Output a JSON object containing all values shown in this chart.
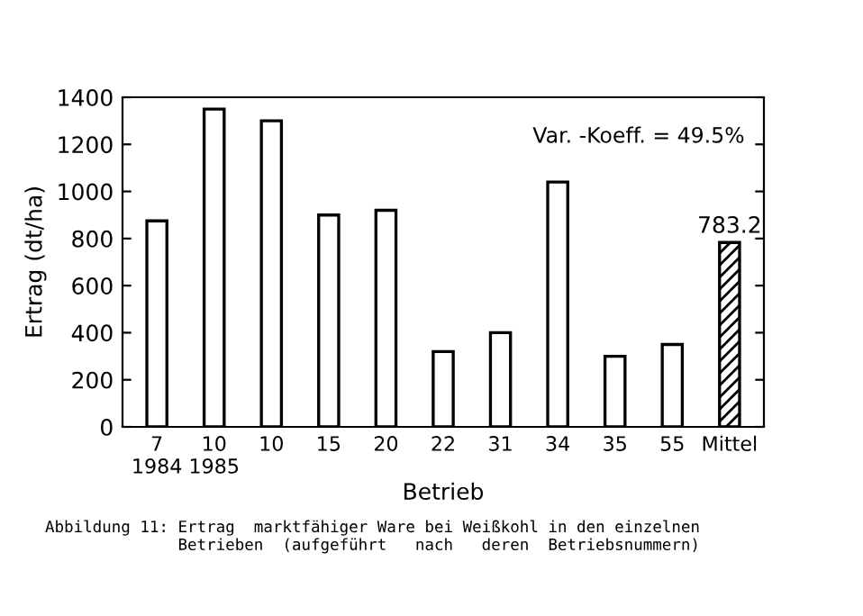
{
  "chart_data": {
    "type": "bar",
    "xlabel": "Betrieb",
    "ylabel": "Ertrag (dt/ha)",
    "categories": [
      "7\n1984",
      "10\n1985",
      "10",
      "15",
      "20",
      "22",
      "31",
      "34",
      "35",
      "55",
      "Mittel"
    ],
    "values": [
      875,
      1350,
      1300,
      900,
      920,
      320,
      400,
      1040,
      300,
      350,
      783.2
    ],
    "colors": [
      "#ffffff",
      "#ffffff",
      "#ffffff",
      "#ffffff",
      "#ffffff",
      "#ffffff",
      "#ffffff",
      "#ffffff",
      "#ffffff",
      "#ffffff",
      "#000000"
    ],
    "value_labels": [
      null,
      null,
      null,
      null,
      null,
      null,
      null,
      null,
      null,
      null,
      "783.2"
    ],
    "ylim": [
      0,
      1400
    ],
    "yticks": [
      0,
      200,
      400,
      600,
      800,
      1000,
      1200,
      1400
    ],
    "grid": false,
    "legend": false,
    "annotations": [
      "Var. -Koeff. = 49.5%",
      "Abbildung 11: Ertrag  marktfähiger Ware bei Weißkohl in den einzelnen\n              Betrieben  (aufgeführt   nach   deren  Betriebsnummern)"
    ]
  }
}
